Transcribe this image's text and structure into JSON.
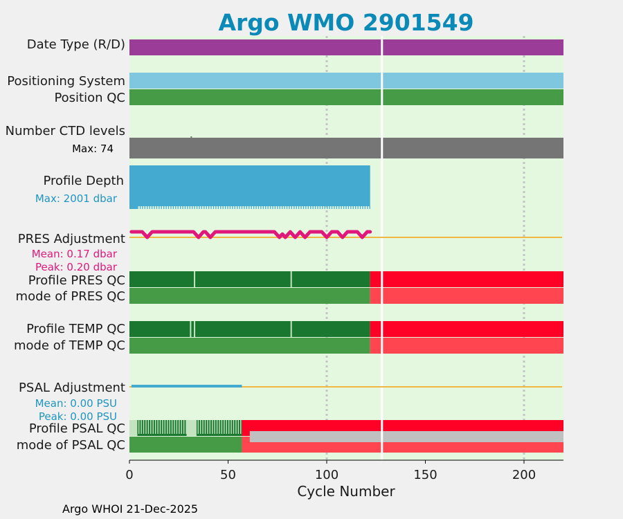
{
  "chart_data": {
    "type": "timeline",
    "title": "Argo WMO 2901549",
    "xlabel": "Cycle Number",
    "xlim": [
      0,
      220
    ],
    "xticks": [
      0,
      50,
      100,
      150,
      200
    ],
    "gridlines_at": [
      100,
      200
    ],
    "gap_at_cycle": 128,
    "footer": "Argo WHOI 21-Dec-2025",
    "rows": {
      "date_type": {
        "label": "Date Type (R/D)",
        "segments": [
          {
            "from": 0,
            "to": 220,
            "color": "#9a3c98"
          }
        ]
      },
      "positioning_system": {
        "label": "Positioning System",
        "segments": [
          {
            "from": 0,
            "to": 220,
            "color": "#7fc6df"
          }
        ]
      },
      "position_qc": {
        "label": "Position QC",
        "segments": [
          {
            "from": 0,
            "to": 220,
            "color": "#469b46"
          }
        ]
      },
      "ctd_levels": {
        "label": "Number CTD levels",
        "max_text": "Max: 74",
        "segments": [
          {
            "from": 0,
            "to": 220,
            "color": "#757575"
          }
        ]
      },
      "profile_depth": {
        "label": "Profile Depth",
        "max_text": "Max: 2001 dbar",
        "last_cycle": 122,
        "color": "#44aad0"
      },
      "pres_adjustment": {
        "label": "PRES Adjustment",
        "mean_text": "Mean: 0.17 dbar",
        "peak_text": "Peak: 0.20 dbar",
        "mean_value": 0.17,
        "peak_value": 0.2,
        "last_cycle": 122,
        "dip_cycles": [
          9,
          35,
          41,
          76,
          79,
          84,
          89,
          100,
          108,
          118
        ],
        "color": "#e0187c",
        "zero_line_color": "#f0b840"
      },
      "profile_pres_qc": {
        "label": "Profile PRES QC",
        "segments": [
          {
            "from": 0,
            "to": 122,
            "color": "#19772f"
          },
          {
            "from": 122,
            "to": 220,
            "color": "#ff0026"
          }
        ],
        "marks": [
          33,
          82
        ]
      },
      "mode_pres_qc": {
        "label": "mode of PRES QC",
        "segments": [
          {
            "from": 0,
            "to": 122,
            "color": "#469b46"
          },
          {
            "from": 122,
            "to": 220,
            "color": "#ff4550"
          }
        ]
      },
      "profile_temp_qc": {
        "label": "Profile TEMP QC",
        "segments": [
          {
            "from": 0,
            "to": 122,
            "color": "#19772f"
          },
          {
            "from": 122,
            "to": 220,
            "color": "#ff0026"
          }
        ],
        "marks": [
          31,
          33,
          82
        ]
      },
      "mode_temp_qc": {
        "label": "mode of TEMP QC",
        "segments": [
          {
            "from": 0,
            "to": 122,
            "color": "#469b46"
          },
          {
            "from": 122,
            "to": 220,
            "color": "#ff4550"
          }
        ]
      },
      "psal_adjustment": {
        "label": "PSAL Adjustment",
        "mean_text": "Mean: 0.00 PSU",
        "peak_text": "Peak: 0.00 PSU",
        "mean_value": 0.0,
        "peak_value": 0.0,
        "last_cycle": 57,
        "color": "#44aad0",
        "zero_line_color": "#f0b840"
      },
      "profile_psal_qc": {
        "label": "Profile PSAL QC",
        "segments": [
          {
            "from": 0,
            "to": 4,
            "color": "#c4e4c0"
          },
          {
            "from": 4,
            "to": 29,
            "color": "#19772f",
            "striped": true
          },
          {
            "from": 29,
            "to": 34,
            "color": "#c4e4c0"
          },
          {
            "from": 34,
            "to": 57,
            "color": "#19772f",
            "striped": true
          },
          {
            "from": 57,
            "to": 220,
            "color": "#ff0026"
          }
        ]
      },
      "mode_psal_qc": {
        "label": "mode of PSAL QC",
        "segments": [
          {
            "from": 0,
            "to": 57,
            "color": "#469b46"
          },
          {
            "from": 57,
            "to": 220,
            "color": "#ff4550"
          }
        ],
        "overlay": {
          "from": 61,
          "to": 220,
          "color": "#c0c0c0"
        }
      }
    }
  }
}
